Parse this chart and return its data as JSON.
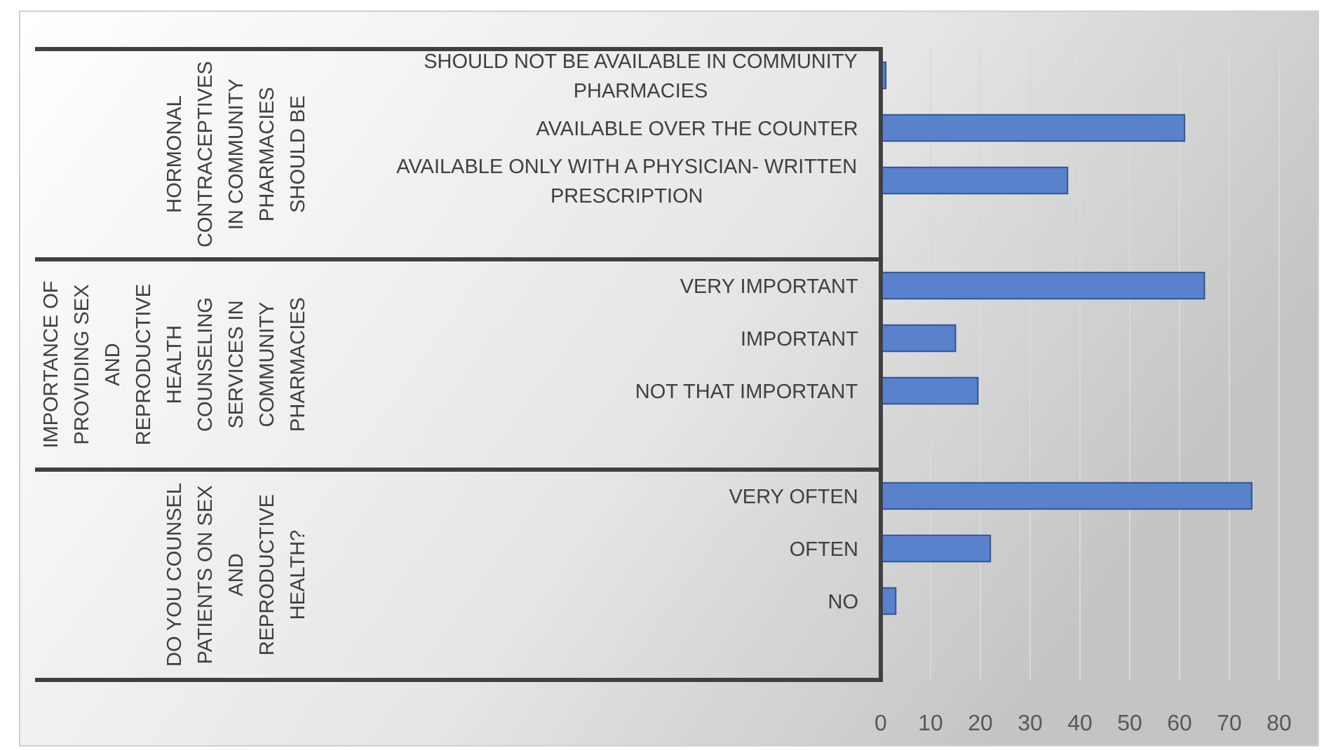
{
  "chart_data": {
    "type": "bar",
    "orientation": "horizontal",
    "categories": [
      "SHOULD NOT BE AVAILABLE IN COMMUNITY PHARMACIES",
      "AVAILABLE OVER THE COUNTER",
      "AVAILABLE ONLY WITH A PHYSICIAN- WRITTEN PRESCRIPTION",
      "VERY IMPORTANT",
      "IMPORTANT",
      "NOT THAT IMPORTANT",
      "VERY OFTEN",
      "OFTEN",
      "NO"
    ],
    "values": [
      1,
      61,
      37.5,
      65,
      15,
      19.5,
      74.5,
      22,
      3
    ],
    "color": "#5a82cc",
    "annotations": [
      "HORMONAL CONTRACEPTIVES IN COMMUNITY PHARMACIES SHOULD BE",
      "IMPORTANCE OF PROVIDING SEX AND REPRODUCTIVE HEALTH COUNSELING SERVICES IN COMMUNITY PHARMACIES",
      "DO YOU COUNSEL PATIENTS ON SEX AND REPRODUCTIVE HEALTH?"
    ],
    "xlim": [
      0,
      80
    ],
    "xticks": [
      0,
      10,
      20,
      30,
      40,
      50,
      60,
      70,
      80
    ],
    "grid": "x"
  }
}
